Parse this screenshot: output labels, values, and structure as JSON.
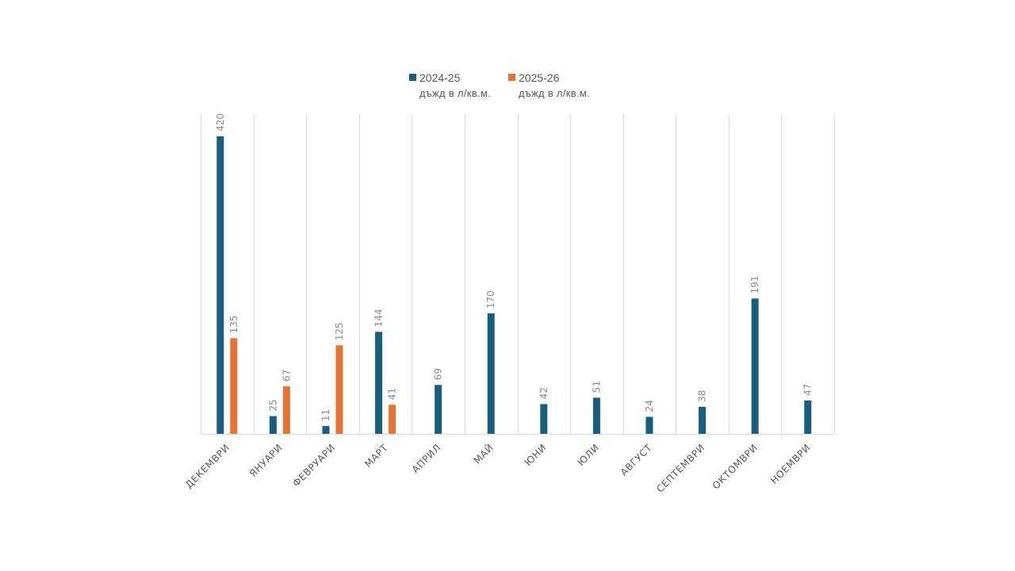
{
  "chart_data": {
    "type": "bar",
    "title": "",
    "xlabel": "",
    "ylabel": "",
    "ylim": [
      0,
      450
    ],
    "grid": "vertical category separators",
    "legend_position": "top-center",
    "categories": [
      "ДЕКЕМВРИ",
      "ЯНУАРИ",
      "ФЕВРУАРИ",
      "МАРТ",
      "АПРИЛ",
      "МАЙ",
      "ЮНИ",
      "ЮЛИ",
      "АВГУСТ",
      "СЕПТЕМВРИ",
      "ОКТОМВРИ",
      "НОЕМВРИ"
    ],
    "series": [
      {
        "name": "2024-25",
        "subtitle": "дъжд в л/кв.м.",
        "color": "#175E7F",
        "values": [
          420,
          25,
          11,
          144,
          69,
          170,
          42,
          51,
          24,
          38,
          191,
          47
        ]
      },
      {
        "name": "2025-26",
        "subtitle": "дъжд в л/кв.м.",
        "color": "#E97132",
        "values": [
          135,
          67,
          125,
          41,
          null,
          null,
          null,
          null,
          null,
          null,
          null,
          null
        ]
      }
    ]
  },
  "colors": {
    "gridline": "#D9D9D9",
    "axis_label": "#595959",
    "data_label": "#8C8C8C"
  }
}
